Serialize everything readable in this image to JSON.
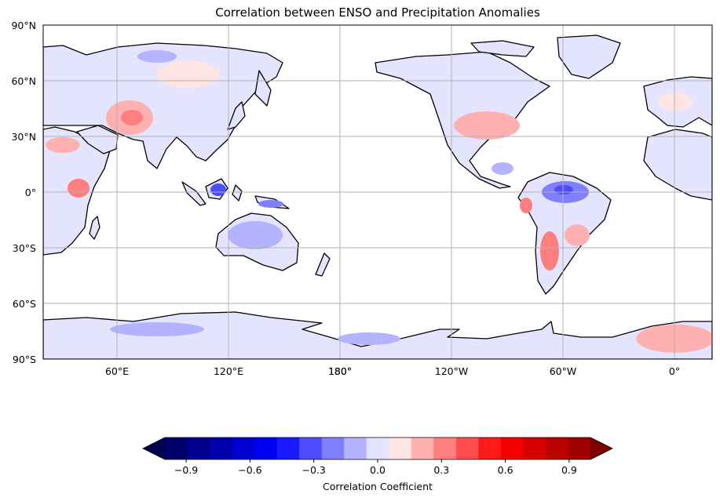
{
  "title": "Correlation between ENSO and Precipitation Anomalies",
  "lat_ticks": [
    "90°N",
    "60°N",
    "30°N",
    "0°",
    "30°S",
    "60°S",
    "90°S"
  ],
  "lon_ticks": [
    "60°E",
    "120°E",
    "180°",
    "180°",
    "120°W",
    "60°W",
    "0°"
  ],
  "colorbar": {
    "label": "Correlation Coefficient",
    "ticks": [
      "−0.9",
      "−0.6",
      "−0.3",
      "0.0",
      "0.3",
      "0.6",
      "0.9"
    ],
    "range": [
      -1.0,
      1.0
    ],
    "step": 0.1,
    "extend": "both",
    "colors": [
      "#00004c",
      "#00006b",
      "#00008c",
      "#0000ad",
      "#0000d0",
      "#0000f2",
      "#1a1aff",
      "#4d4dff",
      "#8080ff",
      "#b3b3ff",
      "#e4e4ff",
      "#ffe4e4",
      "#ffb1b1",
      "#ff7f7f",
      "#ff4c4c",
      "#ff1a1a",
      "#f40000",
      "#d80000",
      "#bb0000",
      "#a10000",
      "#800000"
    ],
    "cmap": "seismic"
  },
  "colors": {
    "land_base": "#e4e4ff",
    "ocean": "#ffffff",
    "coast": "#000000",
    "grid": "#b0b0b0"
  },
  "map": {
    "projection": "PlateCarree",
    "central_longitude": 180,
    "grid": true
  }
}
